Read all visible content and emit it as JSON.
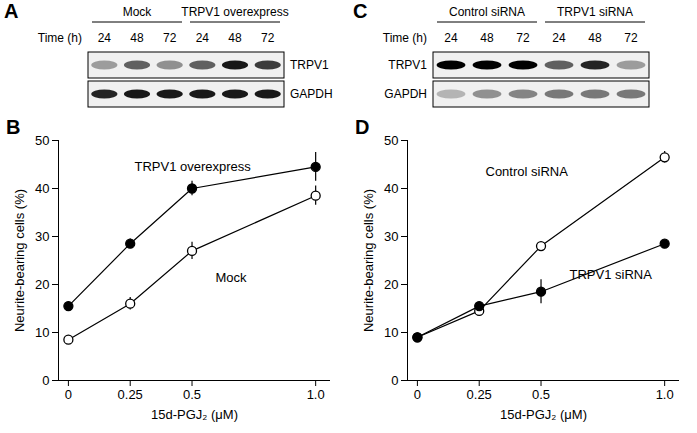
{
  "blots": [
    {
      "title": "A",
      "time_label": "Time (h)",
      "groups": [
        {
          "name": "Mock",
          "times": [
            24,
            48,
            72
          ]
        },
        {
          "name": "TRPV1 overexpress",
          "times": [
            24,
            48,
            72
          ]
        }
      ],
      "rows": [
        {
          "name": "TRPV1",
          "intensity": [
            0.35,
            0.6,
            0.4,
            0.6,
            0.9,
            0.75
          ]
        },
        {
          "name": "GAPDH",
          "intensity": [
            0.85,
            0.9,
            0.9,
            0.9,
            0.9,
            0.9
          ]
        }
      ]
    },
    {
      "title": "C",
      "time_label": "Time (h)",
      "groups": [
        {
          "name": "Control siRNA",
          "times": [
            24,
            48,
            72
          ]
        },
        {
          "name": "TRPV1 siRNA",
          "times": [
            24,
            48,
            72
          ]
        }
      ],
      "rows": [
        {
          "name": "TRPV1",
          "intensity": [
            1,
            1,
            1,
            0.6,
            0.85,
            0.35
          ]
        },
        {
          "name": "GAPDH",
          "intensity": [
            0.25,
            0.4,
            0.45,
            0.5,
            0.5,
            0.5
          ]
        }
      ]
    }
  ],
  "chart_data": [
    {
      "type": "line",
      "title": "B",
      "x_label": "15d-PGJ₂ (μM)",
      "y_label": "Neurite-bearing cells (%)",
      "x": [
        0,
        0.25,
        0.5,
        1
      ],
      "xlim": [
        -0.04,
        1.06
      ],
      "xticks": [
        0,
        0.25,
        0.5,
        {
          "value": 1,
          "label": "1.0"
        }
      ],
      "ylim": [
        0,
        50
      ],
      "yticks": [
        0,
        10,
        20,
        30,
        40,
        50
      ],
      "grid": false,
      "series": [
        {
          "name": "TRPV1 overexpress",
          "color": "#000000",
          "marker": "filled_circle",
          "values": [
            15.5,
            28.5,
            40,
            44.5
          ],
          "errors": [
            0.8,
            1,
            1.5,
            3
          ]
        },
        {
          "name": "Mock",
          "color": "#000000",
          "marker": "open_circle",
          "values": [
            8.5,
            16,
            27,
            38.5
          ],
          "errors": [
            0.6,
            1.3,
            1.8,
            2
          ]
        }
      ]
    },
    {
      "type": "line",
      "title": "D",
      "x_label": "15d-PGJ₂ (μM)",
      "y_label": "Neurite-bearing cells (%)",
      "x": [
        0,
        0.25,
        0.5,
        1
      ],
      "xlim": [
        -0.04,
        1.06
      ],
      "xticks": [
        0,
        0.25,
        0.5,
        {
          "value": 1,
          "label": "1.0"
        }
      ],
      "ylim": [
        0,
        50
      ],
      "yticks": [
        0,
        10,
        20,
        30,
        40,
        50
      ],
      "grid": false,
      "series": [
        {
          "name": "Control siRNA",
          "color": "#000000",
          "marker": "open_circle",
          "values": [
            9,
            14.5,
            28,
            46.5
          ],
          "errors": [
            0.5,
            1,
            0.5,
            1.2
          ]
        },
        {
          "name": "TRPV1 siRNA",
          "color": "#000000",
          "marker": "filled_circle",
          "values": [
            9,
            15.5,
            18.5,
            28.5
          ],
          "errors": [
            0.5,
            0.8,
            2.5,
            0.5
          ]
        }
      ]
    }
  ]
}
